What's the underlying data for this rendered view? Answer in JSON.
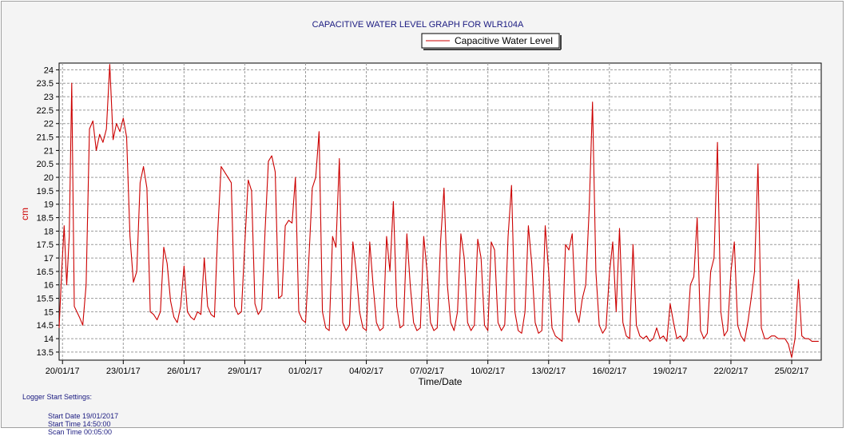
{
  "chart_data": {
    "type": "line",
    "title": "CAPACITIVE WATER LEVEL GRAPH FOR WLR104A",
    "xlabel": "Time/Date",
    "ylabel": "cm",
    "ylim": [
      13.2,
      24.25
    ],
    "xlim": [
      "2017-01-19T20:00",
      "2017-02-26T11:00"
    ],
    "grid": true,
    "legend_position": "top-right",
    "y_ticks": [
      "13.5",
      "14",
      "14.5",
      "15",
      "15.5",
      "16",
      "16.5",
      "17",
      "17.5",
      "18",
      "18.5",
      "19",
      "19.5",
      "20",
      "20.5",
      "21",
      "21.5",
      "22",
      "22.5",
      "23",
      "23.5",
      "24"
    ],
    "x_ticks": [
      "20/01/17",
      "23/01/17",
      "26/01/17",
      "29/01/17",
      "01/02/17",
      "04/02/17",
      "07/02/17",
      "10/02/17",
      "13/02/17",
      "16/02/17",
      "19/02/17",
      "22/02/17",
      "25/02/17"
    ],
    "series": [
      {
        "name": "Capacitive Water Level",
        "color": "#cc0000",
        "points": [
          [
            "2017-01-19T20:00",
            14.4
          ],
          [
            "2017-01-19T23:00",
            16.5
          ],
          [
            "2017-01-20T02:00",
            18.2
          ],
          [
            "2017-01-20T05:00",
            16.0
          ],
          [
            "2017-01-20T08:00",
            17.8
          ],
          [
            "2017-01-20T11:00",
            23.5
          ],
          [
            "2017-01-20T14:00",
            15.2
          ],
          [
            "2017-01-20T17:00",
            15.0
          ],
          [
            "2017-01-20T20:00",
            14.8
          ],
          [
            "2017-01-21T00:00",
            14.5
          ],
          [
            "2017-01-21T04:00",
            16.0
          ],
          [
            "2017-01-21T08:00",
            21.8
          ],
          [
            "2017-01-21T12:00",
            22.1
          ],
          [
            "2017-01-21T16:00",
            21.0
          ],
          [
            "2017-01-21T20:00",
            21.6
          ],
          [
            "2017-01-22T00:00",
            21.3
          ],
          [
            "2017-01-22T04:00",
            21.8
          ],
          [
            "2017-01-22T08:00",
            24.2
          ],
          [
            "2017-01-22T12:00",
            21.4
          ],
          [
            "2017-01-22T16:00",
            22.0
          ],
          [
            "2017-01-22T20:00",
            21.7
          ],
          [
            "2017-01-23T00:00",
            22.2
          ],
          [
            "2017-01-23T04:00",
            21.5
          ],
          [
            "2017-01-23T08:00",
            17.8
          ],
          [
            "2017-01-23T12:00",
            16.1
          ],
          [
            "2017-01-23T16:00",
            16.5
          ],
          [
            "2017-01-23T20:00",
            19.8
          ],
          [
            "2017-01-24T00:00",
            20.4
          ],
          [
            "2017-01-24T04:00",
            19.6
          ],
          [
            "2017-01-24T08:00",
            15.0
          ],
          [
            "2017-01-24T12:00",
            14.9
          ],
          [
            "2017-01-24T16:00",
            14.7
          ],
          [
            "2017-01-24T20:00",
            15.0
          ],
          [
            "2017-01-25T00:00",
            17.4
          ],
          [
            "2017-01-25T04:00",
            16.8
          ],
          [
            "2017-01-25T08:00",
            15.4
          ],
          [
            "2017-01-25T12:00",
            14.8
          ],
          [
            "2017-01-25T16:00",
            14.6
          ],
          [
            "2017-01-25T20:00",
            15.2
          ],
          [
            "2017-01-26T00:00",
            16.7
          ],
          [
            "2017-01-26T04:00",
            15.0
          ],
          [
            "2017-01-26T08:00",
            14.8
          ],
          [
            "2017-01-26T12:00",
            14.7
          ],
          [
            "2017-01-26T16:00",
            15.0
          ],
          [
            "2017-01-26T20:00",
            14.9
          ],
          [
            "2017-01-27T00:00",
            17.0
          ],
          [
            "2017-01-27T04:00",
            15.2
          ],
          [
            "2017-01-27T08:00",
            14.9
          ],
          [
            "2017-01-27T12:00",
            14.8
          ],
          [
            "2017-01-27T16:00",
            18.0
          ],
          [
            "2017-01-27T20:00",
            20.4
          ],
          [
            "2017-01-28T00:00",
            20.2
          ],
          [
            "2017-01-28T04:00",
            20.0
          ],
          [
            "2017-01-28T08:00",
            19.8
          ],
          [
            "2017-01-28T12:00",
            15.2
          ],
          [
            "2017-01-28T16:00",
            14.9
          ],
          [
            "2017-01-28T20:00",
            15.0
          ],
          [
            "2017-01-29T00:00",
            17.5
          ],
          [
            "2017-01-29T04:00",
            19.9
          ],
          [
            "2017-01-29T08:00",
            19.5
          ],
          [
            "2017-01-29T12:00",
            15.3
          ],
          [
            "2017-01-29T16:00",
            14.9
          ],
          [
            "2017-01-29T20:00",
            15.1
          ],
          [
            "2017-01-30T00:00",
            18.0
          ],
          [
            "2017-01-30T04:00",
            20.6
          ],
          [
            "2017-01-30T08:00",
            20.8
          ],
          [
            "2017-01-30T12:00",
            20.2
          ],
          [
            "2017-01-30T16:00",
            15.5
          ],
          [
            "2017-01-30T20:00",
            15.6
          ],
          [
            "2017-01-31T00:00",
            18.2
          ],
          [
            "2017-01-31T04:00",
            18.4
          ],
          [
            "2017-01-31T08:00",
            18.3
          ],
          [
            "2017-01-31T12:00",
            20.0
          ],
          [
            "2017-01-31T16:00",
            15.0
          ],
          [
            "2017-01-31T20:00",
            14.7
          ],
          [
            "2017-02-01T00:00",
            14.6
          ],
          [
            "2017-02-01T04:00",
            17.0
          ],
          [
            "2017-02-01T08:00",
            19.6
          ],
          [
            "2017-02-01T12:00",
            20.0
          ],
          [
            "2017-02-01T16:00",
            21.7
          ],
          [
            "2017-02-01T20:00",
            15.0
          ],
          [
            "2017-02-02T00:00",
            14.4
          ],
          [
            "2017-02-02T04:00",
            14.3
          ],
          [
            "2017-02-02T08:00",
            17.8
          ],
          [
            "2017-02-02T12:00",
            17.4
          ],
          [
            "2017-02-02T16:00",
            20.7
          ],
          [
            "2017-02-02T20:00",
            14.6
          ],
          [
            "2017-02-03T00:00",
            14.3
          ],
          [
            "2017-02-03T04:00",
            14.5
          ],
          [
            "2017-02-03T08:00",
            17.6
          ],
          [
            "2017-02-03T12:00",
            16.5
          ],
          [
            "2017-02-03T16:00",
            15.0
          ],
          [
            "2017-02-03T20:00",
            14.4
          ],
          [
            "2017-02-04T00:00",
            14.3
          ],
          [
            "2017-02-04T04:00",
            17.6
          ],
          [
            "2017-02-04T08:00",
            16.0
          ],
          [
            "2017-02-04T12:00",
            14.6
          ],
          [
            "2017-02-04T16:00",
            14.3
          ],
          [
            "2017-02-04T20:00",
            14.4
          ],
          [
            "2017-02-05T00:00",
            17.8
          ],
          [
            "2017-02-05T04:00",
            16.5
          ],
          [
            "2017-02-05T08:00",
            19.1
          ],
          [
            "2017-02-05T12:00",
            15.2
          ],
          [
            "2017-02-05T16:00",
            14.4
          ],
          [
            "2017-02-05T20:00",
            14.5
          ],
          [
            "2017-02-06T00:00",
            17.9
          ],
          [
            "2017-02-06T04:00",
            16.0
          ],
          [
            "2017-02-06T08:00",
            14.6
          ],
          [
            "2017-02-06T12:00",
            14.3
          ],
          [
            "2017-02-06T16:00",
            14.4
          ],
          [
            "2017-02-06T20:00",
            17.8
          ],
          [
            "2017-02-07T00:00",
            16.5
          ],
          [
            "2017-02-07T04:00",
            14.6
          ],
          [
            "2017-02-07T08:00",
            14.3
          ],
          [
            "2017-02-07T12:00",
            14.4
          ],
          [
            "2017-02-07T16:00",
            17.6
          ],
          [
            "2017-02-07T20:00",
            19.6
          ],
          [
            "2017-02-08T00:00",
            16.0
          ],
          [
            "2017-02-08T04:00",
            14.6
          ],
          [
            "2017-02-08T08:00",
            14.3
          ],
          [
            "2017-02-08T12:00",
            15.0
          ],
          [
            "2017-02-08T16:00",
            17.9
          ],
          [
            "2017-02-08T20:00",
            17.0
          ],
          [
            "2017-02-09T00:00",
            14.6
          ],
          [
            "2017-02-09T04:00",
            14.3
          ],
          [
            "2017-02-09T08:00",
            14.5
          ],
          [
            "2017-02-09T12:00",
            17.7
          ],
          [
            "2017-02-09T16:00",
            17.0
          ],
          [
            "2017-02-09T20:00",
            14.5
          ],
          [
            "2017-02-10T00:00",
            14.3
          ],
          [
            "2017-02-10T04:00",
            17.6
          ],
          [
            "2017-02-10T08:00",
            17.3
          ],
          [
            "2017-02-10T12:00",
            14.6
          ],
          [
            "2017-02-10T16:00",
            14.3
          ],
          [
            "2017-02-10T20:00",
            14.5
          ],
          [
            "2017-02-11T00:00",
            17.8
          ],
          [
            "2017-02-11T04:00",
            19.7
          ],
          [
            "2017-02-11T08:00",
            15.0
          ],
          [
            "2017-02-11T12:00",
            14.3
          ],
          [
            "2017-02-11T16:00",
            14.2
          ],
          [
            "2017-02-11T20:00",
            15.0
          ],
          [
            "2017-02-12T00:00",
            18.2
          ],
          [
            "2017-02-12T04:00",
            16.8
          ],
          [
            "2017-02-12T08:00",
            14.6
          ],
          [
            "2017-02-12T12:00",
            14.2
          ],
          [
            "2017-02-12T16:00",
            14.3
          ],
          [
            "2017-02-12T20:00",
            18.2
          ],
          [
            "2017-02-13T00:00",
            16.5
          ],
          [
            "2017-02-13T04:00",
            14.4
          ],
          [
            "2017-02-13T08:00",
            14.1
          ],
          [
            "2017-02-13T12:00",
            14.0
          ],
          [
            "2017-02-13T16:00",
            13.9
          ],
          [
            "2017-02-13T20:00",
            17.5
          ],
          [
            "2017-02-14T00:00",
            17.3
          ],
          [
            "2017-02-14T04:00",
            17.9
          ],
          [
            "2017-02-14T08:00",
            15.0
          ],
          [
            "2017-02-14T12:00",
            14.6
          ],
          [
            "2017-02-14T16:00",
            15.5
          ],
          [
            "2017-02-14T20:00",
            16.0
          ],
          [
            "2017-02-15T00:00",
            18.8
          ],
          [
            "2017-02-15T04:00",
            22.8
          ],
          [
            "2017-02-15T08:00",
            16.5
          ],
          [
            "2017-02-15T12:00",
            14.5
          ],
          [
            "2017-02-15T16:00",
            14.2
          ],
          [
            "2017-02-15T20:00",
            14.4
          ],
          [
            "2017-02-16T00:00",
            16.4
          ],
          [
            "2017-02-16T04:00",
            17.6
          ],
          [
            "2017-02-16T08:00",
            15.0
          ],
          [
            "2017-02-16T12:00",
            18.1
          ],
          [
            "2017-02-16T16:00",
            14.6
          ],
          [
            "2017-02-16T20:00",
            14.1
          ],
          [
            "2017-02-17T00:00",
            14.0
          ],
          [
            "2017-02-17T04:00",
            17.5
          ],
          [
            "2017-02-17T08:00",
            14.5
          ],
          [
            "2017-02-17T12:00",
            14.1
          ],
          [
            "2017-02-17T16:00",
            14.0
          ],
          [
            "2017-02-17T20:00",
            14.1
          ],
          [
            "2017-02-18T00:00",
            13.9
          ],
          [
            "2017-02-18T04:00",
            14.0
          ],
          [
            "2017-02-18T08:00",
            14.4
          ],
          [
            "2017-02-18T12:00",
            14.0
          ],
          [
            "2017-02-18T16:00",
            14.1
          ],
          [
            "2017-02-18T20:00",
            13.9
          ],
          [
            "2017-02-19T00:00",
            15.3
          ],
          [
            "2017-02-19T04:00",
            14.6
          ],
          [
            "2017-02-19T08:00",
            14.0
          ],
          [
            "2017-02-19T12:00",
            14.1
          ],
          [
            "2017-02-19T16:00",
            13.9
          ],
          [
            "2017-02-19T20:00",
            14.1
          ],
          [
            "2017-02-20T00:00",
            16.0
          ],
          [
            "2017-02-20T04:00",
            16.3
          ],
          [
            "2017-02-20T08:00",
            18.5
          ],
          [
            "2017-02-20T12:00",
            14.3
          ],
          [
            "2017-02-20T16:00",
            14.0
          ],
          [
            "2017-02-20T20:00",
            14.2
          ],
          [
            "2017-02-21T00:00",
            16.5
          ],
          [
            "2017-02-21T04:00",
            17.0
          ],
          [
            "2017-02-21T08:00",
            21.3
          ],
          [
            "2017-02-21T12:00",
            15.0
          ],
          [
            "2017-02-21T16:00",
            14.1
          ],
          [
            "2017-02-21T20:00",
            14.3
          ],
          [
            "2017-02-22T00:00",
            16.5
          ],
          [
            "2017-02-22T04:00",
            17.6
          ],
          [
            "2017-02-22T08:00",
            14.5
          ],
          [
            "2017-02-22T12:00",
            14.1
          ],
          [
            "2017-02-22T16:00",
            13.9
          ],
          [
            "2017-02-22T20:00",
            14.6
          ],
          [
            "2017-02-23T00:00",
            15.5
          ],
          [
            "2017-02-23T04:00",
            16.5
          ],
          [
            "2017-02-23T08:00",
            20.5
          ],
          [
            "2017-02-23T12:00",
            14.4
          ],
          [
            "2017-02-23T16:00",
            14.0
          ],
          [
            "2017-02-23T20:00",
            14.0
          ],
          [
            "2017-02-24T00:00",
            14.1
          ],
          [
            "2017-02-24T04:00",
            14.1
          ],
          [
            "2017-02-24T08:00",
            14.0
          ],
          [
            "2017-02-24T12:00",
            14.0
          ],
          [
            "2017-02-24T16:00",
            14.0
          ],
          [
            "2017-02-24T20:00",
            13.8
          ],
          [
            "2017-02-25T00:00",
            13.3
          ],
          [
            "2017-02-25T04:00",
            14.0
          ],
          [
            "2017-02-25T08:00",
            16.2
          ],
          [
            "2017-02-25T12:00",
            14.1
          ],
          [
            "2017-02-25T16:00",
            14.0
          ],
          [
            "2017-02-25T20:00",
            14.0
          ],
          [
            "2017-02-26T00:00",
            13.9
          ],
          [
            "2017-02-26T04:00",
            13.9
          ],
          [
            "2017-02-26T08:00",
            13.9
          ]
        ]
      }
    ]
  },
  "footer": {
    "heading": "Logger Start Settings:",
    "start_date": "Start Date 19/01/2017",
    "start_time": "Start Time 14:50:00",
    "scan_time": "Scan Time 00:05:00"
  }
}
